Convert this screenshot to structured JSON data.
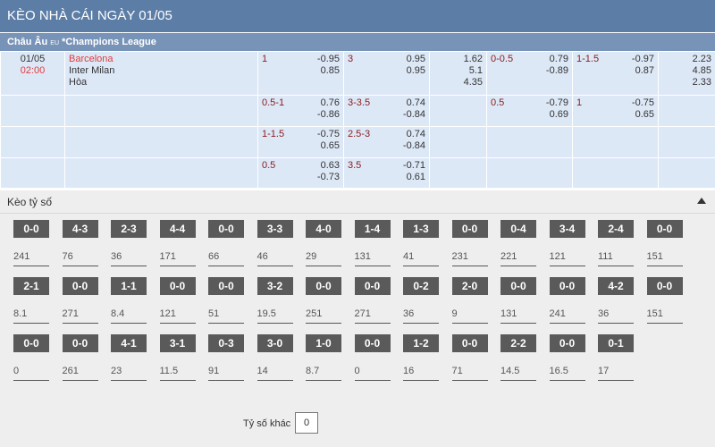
{
  "header": {
    "title": "KÈO NHÀ CÁI NGÀY 01/05"
  },
  "league": {
    "name_prefix": "Châu Âu",
    "region_code": "EU",
    "name": "*Champions League"
  },
  "match": {
    "date": "01/05",
    "time": "02:00",
    "home": "Barcelona",
    "away": "Inter Milan",
    "draw": "Hòa"
  },
  "odds_rows": [
    {
      "c1": {
        "hc": "1",
        "vals": [
          "-0.95",
          "0.85"
        ]
      },
      "c2": {
        "hc": "3",
        "vals": [
          "0.95",
          "0.95"
        ]
      },
      "c3": {
        "vals": [
          "1.62",
          "5.1",
          "4.35"
        ]
      },
      "c4": {
        "hc": "0-0.5",
        "vals": [
          "0.79",
          "-0.89"
        ]
      },
      "c5": {
        "hc": "1-1.5",
        "vals": [
          "-0.97",
          "0.87"
        ]
      },
      "c6": {
        "vals": [
          "2.23",
          "4.85",
          "2.33"
        ]
      }
    },
    {
      "c1": {
        "hc": "0.5-1",
        "vals": [
          "0.76",
          "-0.86"
        ]
      },
      "c2": {
        "hc": "3-3.5",
        "vals": [
          "0.74",
          "-0.84"
        ]
      },
      "c3": {
        "vals": []
      },
      "c4": {
        "hc": "0.5",
        "vals": [
          "-0.79",
          "0.69"
        ]
      },
      "c5": {
        "hc": "1",
        "vals": [
          "-0.75",
          "0.65"
        ]
      },
      "c6": {
        "vals": []
      }
    },
    {
      "c1": {
        "hc": "1-1.5",
        "vals": [
          "-0.75",
          "0.65"
        ]
      },
      "c2": {
        "hc": "2.5-3",
        "vals": [
          "0.74",
          "-0.84"
        ]
      },
      "c3": {
        "vals": []
      },
      "c4": {
        "hc": "",
        "vals": []
      },
      "c5": {
        "hc": "",
        "vals": []
      },
      "c6": {
        "vals": []
      }
    },
    {
      "c1": {
        "hc": "0.5",
        "vals": [
          "0.63",
          "-0.73"
        ]
      },
      "c2": {
        "hc": "3.5",
        "vals": [
          "-0.71",
          "0.61"
        ]
      },
      "c3": {
        "vals": []
      },
      "c4": {
        "hc": "",
        "vals": []
      },
      "c5": {
        "hc": "",
        "vals": []
      },
      "c6": {
        "vals": []
      }
    }
  ],
  "score_section": {
    "title": "Kèo tỷ số",
    "rows": [
      [
        {
          "score": "0-0",
          "odds": "241"
        },
        {
          "score": "4-3",
          "odds": "76"
        },
        {
          "score": "2-3",
          "odds": "36"
        },
        {
          "score": "4-4",
          "odds": "171"
        },
        {
          "score": "0-0",
          "odds": "66"
        },
        {
          "score": "3-3",
          "odds": "46"
        },
        {
          "score": "4-0",
          "odds": "29"
        },
        {
          "score": "1-4",
          "odds": "131"
        },
        {
          "score": "1-3",
          "odds": "41"
        },
        {
          "score": "0-0",
          "odds": "231"
        },
        {
          "score": "0-4",
          "odds": "221"
        },
        {
          "score": "3-4",
          "odds": "121"
        },
        {
          "score": "2-4",
          "odds": "111"
        },
        {
          "score": "0-0",
          "odds": "151"
        }
      ],
      [
        {
          "score": "2-1",
          "odds": "8.1"
        },
        {
          "score": "0-0",
          "odds": "271"
        },
        {
          "score": "1-1",
          "odds": "8.4"
        },
        {
          "score": "0-0",
          "odds": "121"
        },
        {
          "score": "0-0",
          "odds": "51"
        },
        {
          "score": "3-2",
          "odds": "19.5"
        },
        {
          "score": "0-0",
          "odds": "251"
        },
        {
          "score": "0-0",
          "odds": "271"
        },
        {
          "score": "0-2",
          "odds": "36"
        },
        {
          "score": "2-0",
          "odds": "9"
        },
        {
          "score": "0-0",
          "odds": "131"
        },
        {
          "score": "0-0",
          "odds": "241"
        },
        {
          "score": "4-2",
          "odds": "36"
        },
        {
          "score": "0-0",
          "odds": "151"
        }
      ],
      [
        {
          "score": "0-0",
          "odds": "0"
        },
        {
          "score": "0-0",
          "odds": "261"
        },
        {
          "score": "4-1",
          "odds": "23"
        },
        {
          "score": "3-1",
          "odds": "11.5"
        },
        {
          "score": "0-3",
          "odds": "91"
        },
        {
          "score": "3-0",
          "odds": "14"
        },
        {
          "score": "1-0",
          "odds": "8.7"
        },
        {
          "score": "0-0",
          "odds": "0"
        },
        {
          "score": "1-2",
          "odds": "16"
        },
        {
          "score": "0-0",
          "odds": "71"
        },
        {
          "score": "2-2",
          "odds": "14.5"
        },
        {
          "score": "0-0",
          "odds": "16.5"
        },
        {
          "score": "0-1",
          "odds": "17"
        }
      ]
    ],
    "other_label": "Tỷ số khác",
    "other_value": "0"
  }
}
